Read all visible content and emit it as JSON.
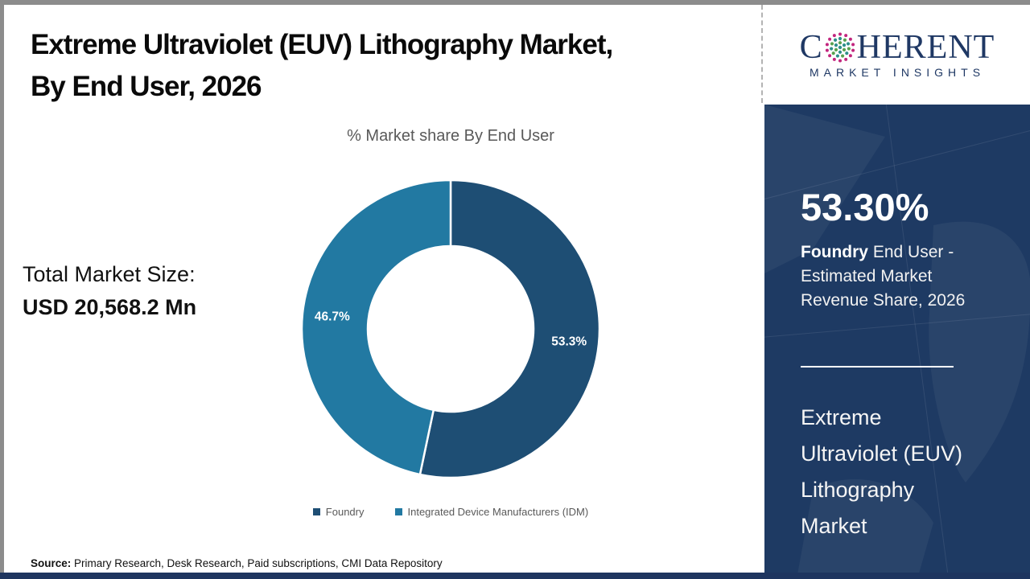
{
  "header": {
    "title_line1": "Extreme Ultraviolet (EUV) Lithography Market,",
    "title_line2": "By End User, 2026"
  },
  "logo": {
    "word_pre": "C",
    "word_post": "HERENT",
    "globe_icon": "dotted-globe",
    "subtitle": "MARKET INSIGHTS",
    "brand_navy": "#1f3864"
  },
  "main": {
    "total_label": "Total Market Size:",
    "total_value": "USD 20,568.2 Mn",
    "source_label": "Source:",
    "source_text": " Primary Research, Desk Research, Paid subscriptions, CMI Data Repository"
  },
  "chart_data": {
    "type": "pie",
    "donut": true,
    "title": "% Market share By End User",
    "categories": [
      "Foundry",
      "Integrated Device Manufacturers (IDM)"
    ],
    "values": [
      53.3,
      46.7
    ],
    "labels": [
      "53.3%",
      "46.7%"
    ],
    "colors": [
      "#1e4e74",
      "#2279a2"
    ],
    "start_angle_deg": 0,
    "direction": "clockwise",
    "legend_position": "bottom"
  },
  "sidebar": {
    "stat_value": "53.30%",
    "stat_line1_bold": "Foundry",
    "stat_line1_rest": " End User -",
    "stat_line2": "Estimated Market",
    "stat_line3": "Revenue Share, 2026",
    "market_lines": [
      "Extreme",
      "Ultraviolet (EUV)",
      "Lithography",
      "Market"
    ],
    "bg_navy": "#1e3a63"
  }
}
